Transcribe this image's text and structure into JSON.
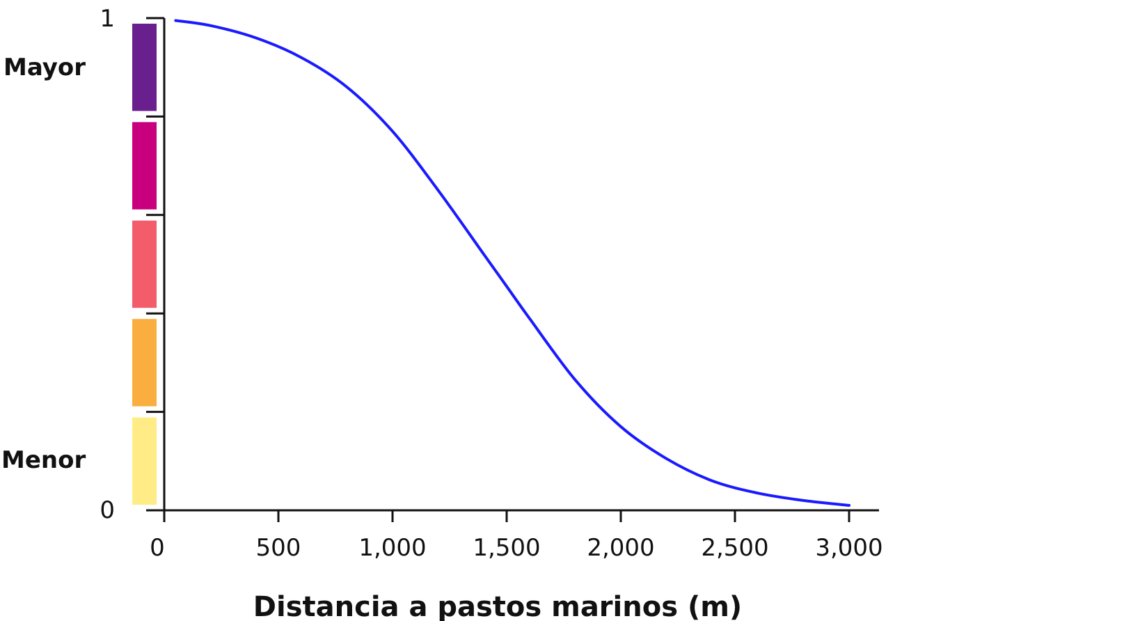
{
  "chart_data": {
    "type": "line",
    "xlabel": "Distancia a pastos marinos (m)",
    "ylabel": "",
    "xlim": [
      0,
      3000
    ],
    "ylim": [
      0,
      1
    ],
    "xticks": [
      0,
      500,
      1000,
      1500,
      2000,
      2500,
      3000
    ],
    "xtick_labels": [
      "0",
      "500",
      "1,000",
      "1,500",
      "2,000",
      "2,500",
      "3,000"
    ],
    "ytick_labels": {
      "top": "1",
      "bottom": "0"
    },
    "scale_labels": {
      "high": "Mayor",
      "low": "Menor"
    },
    "color_scale": [
      "#6a1f8f",
      "#c8007e",
      "#f25c6b",
      "#f9ae3f",
      "#ffec86"
    ],
    "line_color": "#1a1aff",
    "grid": false,
    "series": [
      {
        "x": [
          50,
          200,
          400,
          600,
          800,
          1000,
          1200,
          1400,
          1500,
          1600,
          1800,
          2000,
          2200,
          2400,
          2600,
          2800,
          3000
        ],
        "y": [
          0.995,
          0.985,
          0.96,
          0.92,
          0.86,
          0.77,
          0.65,
          0.52,
          0.455,
          0.39,
          0.265,
          0.17,
          0.105,
          0.06,
          0.035,
          0.02,
          0.01
        ]
      }
    ]
  }
}
